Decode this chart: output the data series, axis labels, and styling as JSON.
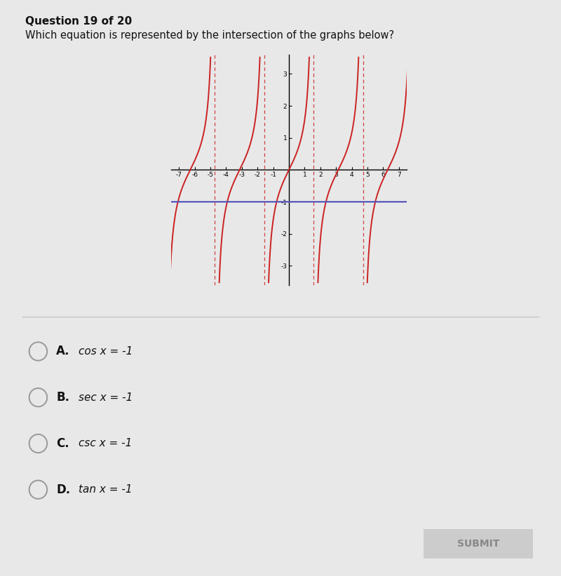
{
  "title": "Question 19 of 20",
  "question": "Which equation is represented by the intersection of the graphs below?",
  "bg_color": "#e8e8e8",
  "graph_bg": "#e8e8e8",
  "tan_color": "#cc2222",
  "hline_color": "#5555bb",
  "hline_y": -1,
  "xmin": -7.5,
  "xmax": 7.5,
  "ymin": -3.6,
  "ymax": 3.6,
  "xticks": [
    -7,
    -6,
    -5,
    -4,
    -3,
    -2,
    -1,
    1,
    2,
    3,
    4,
    5,
    6,
    7
  ],
  "yticks": [
    -3,
    -2,
    -1,
    1,
    2,
    3
  ],
  "option_labels": [
    "A.",
    "B.",
    "C.",
    "D."
  ],
  "option_funcs": [
    "cos",
    "sec",
    "csc",
    "tan"
  ],
  "option_eq": "x = -1"
}
